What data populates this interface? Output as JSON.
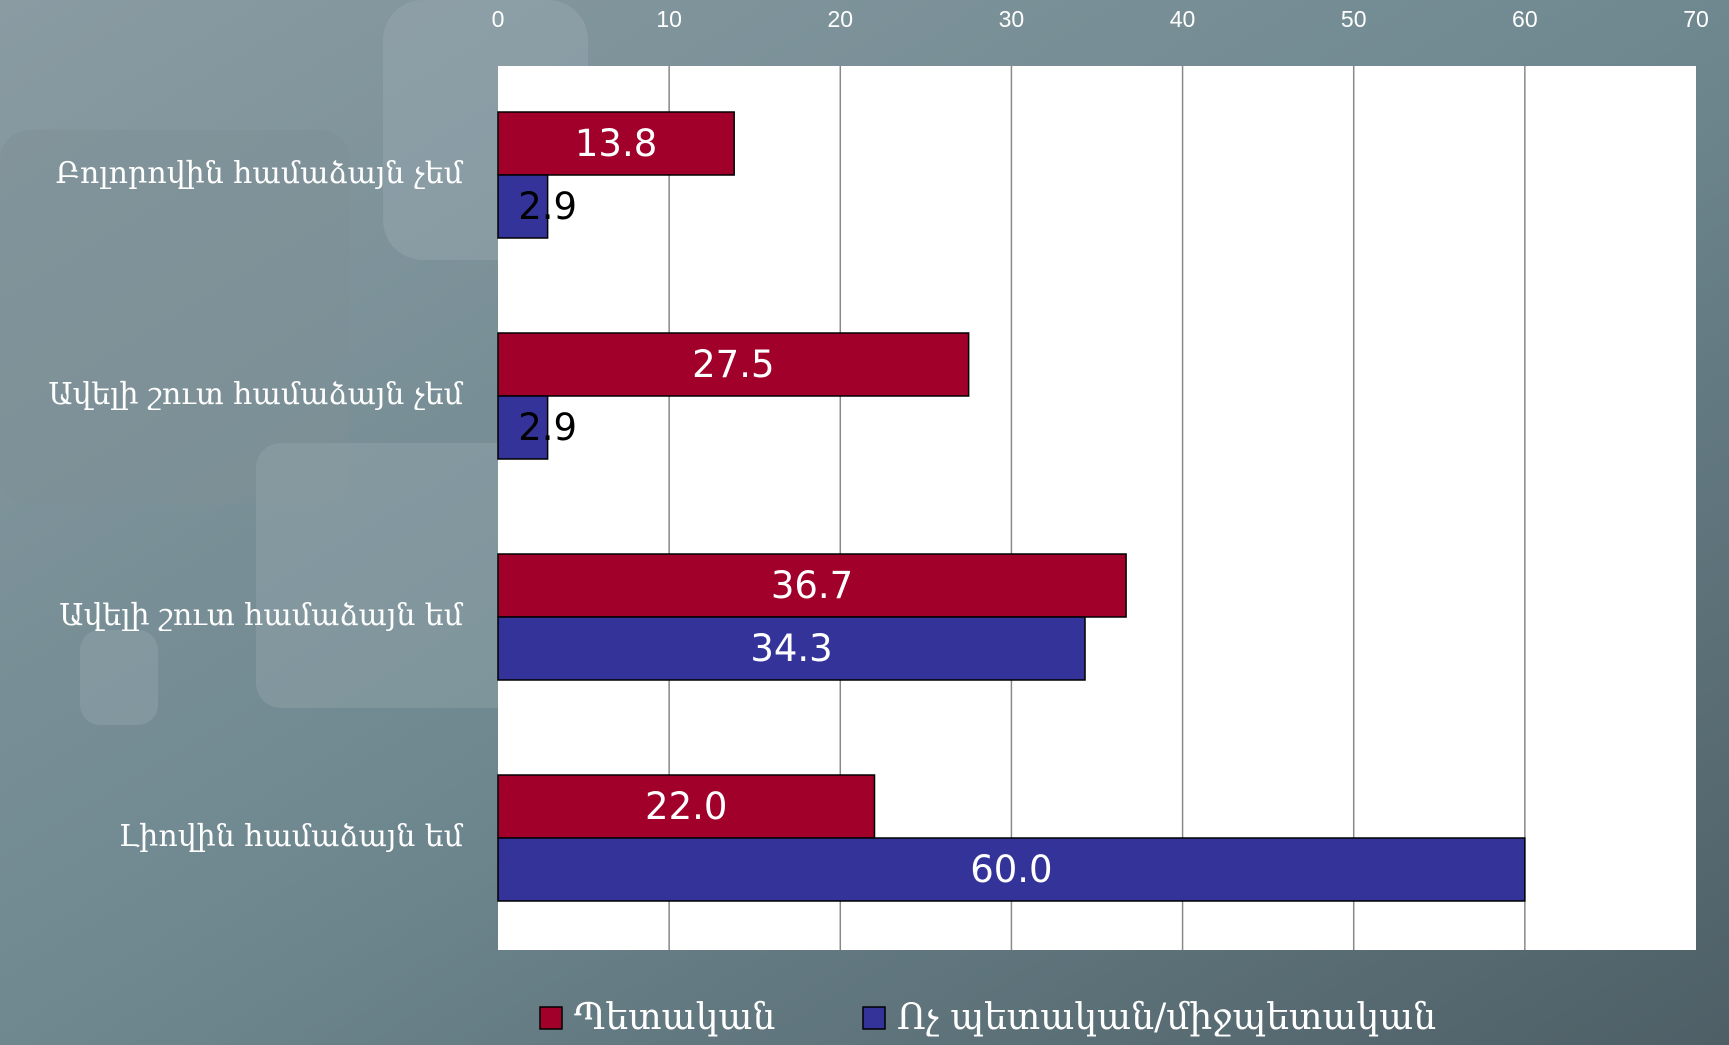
{
  "chart_data": {
    "type": "bar",
    "orientation": "horizontal",
    "categories": [
      "Բոլորովին համաձայն չեմ",
      "Ավելի շուտ համաձայն չեմ",
      "Ավելի շուտ համաձայն եմ",
      "Լիովին համաձայն եմ"
    ],
    "series": [
      {
        "name": "Պետական",
        "color": "#a0002a",
        "values": [
          13.8,
          27.5,
          36.7,
          22.0
        ],
        "value_labels": [
          "13.8",
          "27.5",
          "36.7",
          "22.0"
        ]
      },
      {
        "name": "Ոչ պետական/միջպետական",
        "color": "#333399",
        "values": [
          2.9,
          2.9,
          34.3,
          60.0
        ],
        "value_labels": [
          "2.9",
          "2.9",
          "34.3",
          "60.0"
        ]
      }
    ],
    "xlim": [
      0,
      70
    ],
    "xticks": [
      0,
      10,
      20,
      30,
      40,
      50,
      60,
      70
    ],
    "grid": true,
    "legend": "bottom"
  }
}
